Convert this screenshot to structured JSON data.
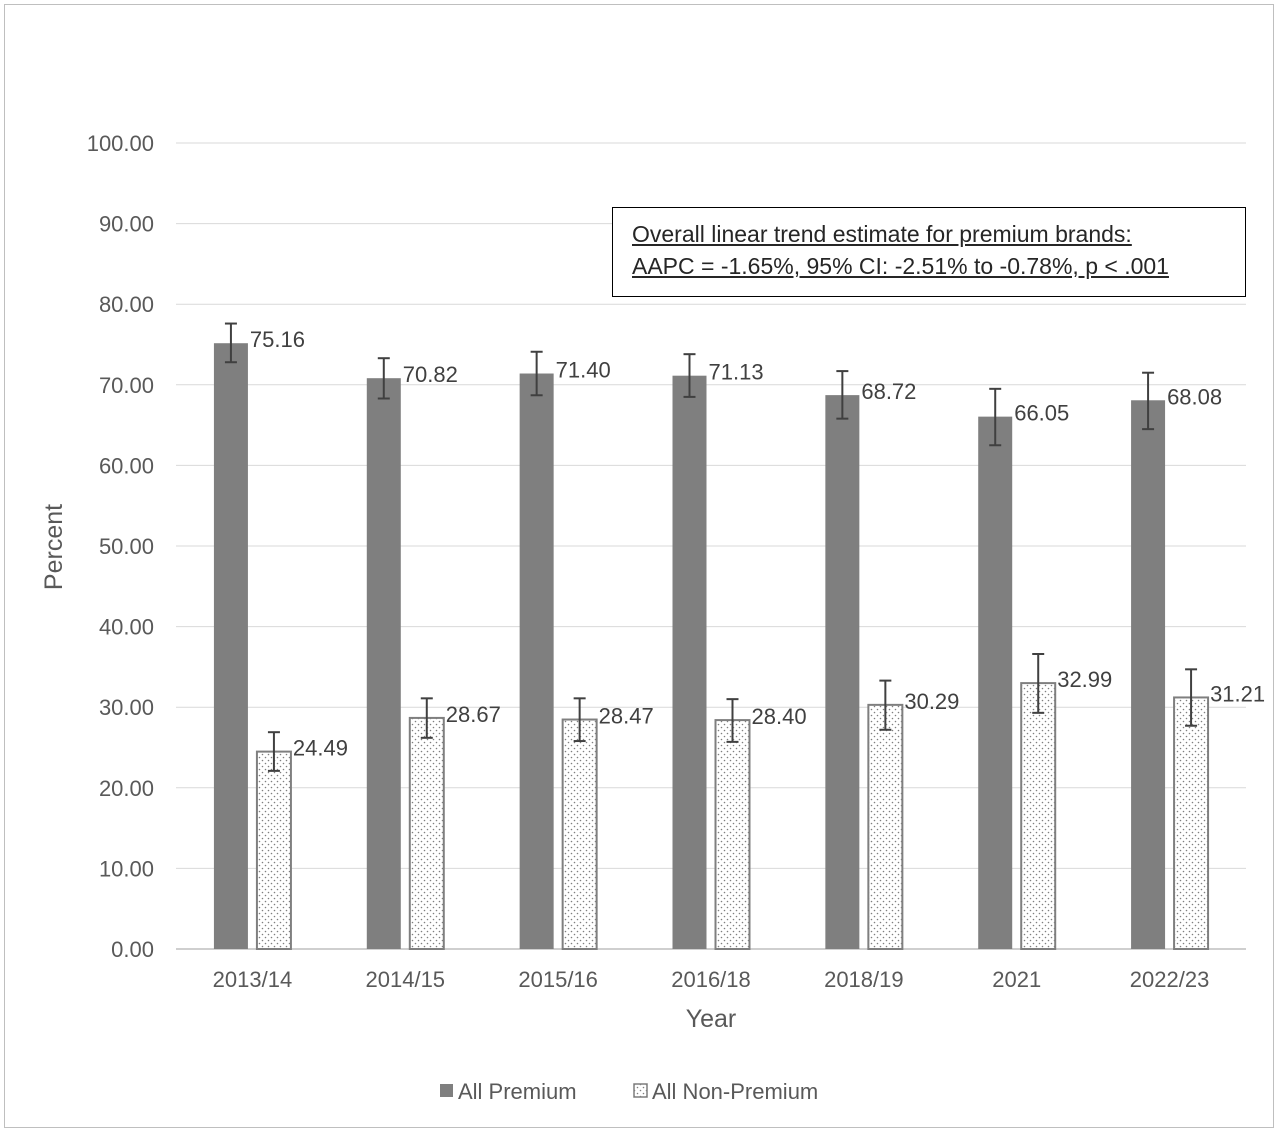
{
  "chart_data": {
    "type": "bar",
    "title": "",
    "xlabel": "Year",
    "ylabel": "Percent",
    "ylim": [
      0,
      100
    ],
    "yticks": [
      "0.00",
      "10.00",
      "20.00",
      "30.00",
      "40.00",
      "50.00",
      "60.00",
      "70.00",
      "80.00",
      "90.00",
      "100.00"
    ],
    "categories": [
      "2013/14",
      "2014/15",
      "2015/16",
      "2016/18",
      "2018/19",
      "2021",
      "2022/23"
    ],
    "series": [
      {
        "name": "All Premium",
        "values": [
          75.16,
          70.82,
          71.4,
          71.13,
          68.72,
          66.05,
          68.08
        ],
        "labels": [
          "75.16",
          "70.82",
          "71.40",
          "71.13",
          "68.72",
          "66.05",
          "68.08"
        ],
        "error_low": [
          72.8,
          68.3,
          68.7,
          68.5,
          65.8,
          62.5,
          64.5
        ],
        "error_high": [
          77.6,
          73.3,
          74.1,
          73.8,
          71.7,
          69.5,
          71.5
        ],
        "color": "#7f7f7f",
        "fill": "solid"
      },
      {
        "name": "All Non-Premium",
        "values": [
          24.49,
          28.67,
          28.47,
          28.4,
          30.29,
          32.99,
          31.21
        ],
        "labels": [
          "24.49",
          "28.67",
          "28.47",
          "28.40",
          "30.29",
          "32.99",
          "31.21"
        ],
        "error_low": [
          22.1,
          26.2,
          25.8,
          25.7,
          27.2,
          29.3,
          27.7
        ],
        "error_high": [
          26.9,
          31.1,
          31.1,
          31.0,
          33.3,
          36.6,
          34.7
        ],
        "color": "#ffffff",
        "fill": "dotted"
      }
    ],
    "grid": true,
    "legend": "bottom",
    "annotation": "Overall linear trend estimate for premium brands:\nAAPC = -1.65%, 95% CI:  -2.51% to -0.78%, p < .001"
  }
}
